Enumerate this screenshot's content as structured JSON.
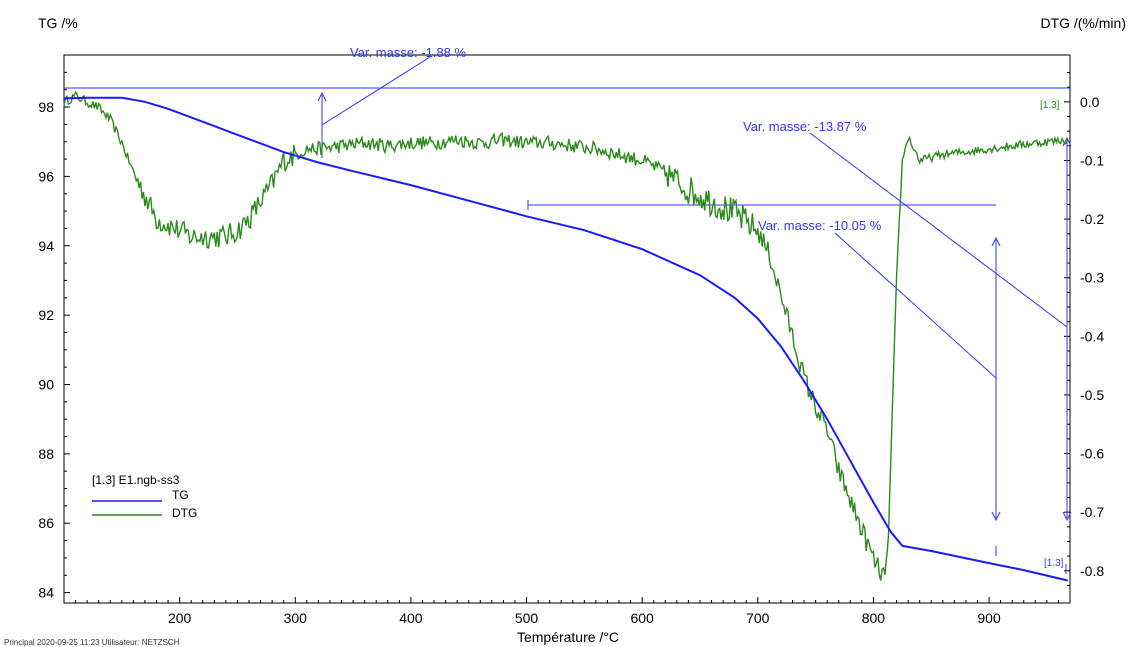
{
  "chart_data": {
    "type": "line",
    "xlabel": "Température /°C",
    "ylabel_left": "TG /%",
    "ylabel_right": "DTG /(%/min)",
    "xlim": [
      100,
      970
    ],
    "ylim_left": [
      83.7,
      99.5
    ],
    "ylim_right": [
      -0.855,
      0.08
    ],
    "x_ticks": [
      200,
      300,
      400,
      500,
      600,
      700,
      800,
      900
    ],
    "y_left_ticks": [
      84,
      86,
      88,
      90,
      92,
      94,
      96,
      98
    ],
    "y_right_ticks": [
      0.0,
      -0.1,
      -0.2,
      -0.3,
      -0.4,
      -0.5,
      -0.6,
      -0.7,
      -0.8
    ],
    "y_right_tick_labels": [
      "0.0",
      "-0.1",
      "-0.2",
      "-0.3",
      "-0.4",
      "-0.5",
      "-0.6",
      "-0.7",
      "-0.8"
    ],
    "grid": false,
    "legend": {
      "placement": "bottom-left",
      "title": "[1.3] E1.ngb-ss3",
      "entries": [
        "TG",
        "DTG"
      ]
    },
    "series": [
      {
        "name": "TG",
        "axis": "left",
        "color": "#1a1aff",
        "x": [
          100,
          120,
          150,
          170,
          190,
          210,
          230,
          250,
          270,
          290,
          300,
          320,
          350,
          400,
          450,
          500,
          550,
          600,
          650,
          680,
          700,
          720,
          740,
          760,
          780,
          800,
          815,
          825,
          850,
          900,
          930,
          968
        ],
        "y": [
          98.25,
          98.27,
          98.27,
          98.15,
          97.95,
          97.7,
          97.45,
          97.2,
          96.95,
          96.7,
          96.6,
          96.4,
          96.15,
          95.75,
          95.3,
          94.85,
          94.45,
          93.9,
          93.15,
          92.5,
          91.9,
          91.1,
          90.1,
          89.0,
          87.8,
          86.6,
          85.75,
          85.35,
          85.2,
          84.85,
          84.65,
          84.35
        ]
      },
      {
        "name": "DTG",
        "axis": "right",
        "color": "#2a8a1a",
        "x": [
          100,
          110,
          120,
          130,
          140,
          150,
          160,
          170,
          180,
          190,
          200,
          210,
          220,
          230,
          240,
          250,
          260,
          270,
          280,
          290,
          300,
          310,
          320,
          340,
          360,
          380,
          400,
          420,
          440,
          460,
          480,
          500,
          520,
          540,
          560,
          580,
          600,
          620,
          640,
          660,
          680,
          700,
          710,
          720,
          730,
          740,
          750,
          760,
          770,
          780,
          790,
          800,
          805,
          810,
          813,
          816,
          820,
          825,
          830,
          840,
          860,
          880,
          900,
          920,
          940,
          968
        ],
        "y": [
          0.0,
          0.01,
          0.0,
          -0.01,
          -0.03,
          -0.07,
          -0.12,
          -0.16,
          -0.2,
          -0.21,
          -0.22,
          -0.23,
          -0.23,
          -0.23,
          -0.23,
          -0.22,
          -0.2,
          -0.17,
          -0.14,
          -0.1,
          -0.09,
          -0.08,
          -0.08,
          -0.075,
          -0.07,
          -0.075,
          -0.07,
          -0.07,
          -0.065,
          -0.07,
          -0.065,
          -0.07,
          -0.07,
          -0.075,
          -0.08,
          -0.09,
          -0.1,
          -0.12,
          -0.15,
          -0.17,
          -0.19,
          -0.22,
          -0.26,
          -0.33,
          -0.4,
          -0.47,
          -0.52,
          -0.56,
          -0.63,
          -0.68,
          -0.73,
          -0.78,
          -0.8,
          -0.81,
          -0.74,
          -0.55,
          -0.3,
          -0.1,
          -0.06,
          -0.1,
          -0.09,
          -0.085,
          -0.08,
          -0.075,
          -0.07,
          -0.065
        ]
      }
    ],
    "annotations": [
      {
        "text": "Var. masse: -1.88 %",
        "color": "#3333ff"
      },
      {
        "text": "Var. masse: -13.87 %",
        "color": "#3333ff"
      },
      {
        "text": "Var. masse: -10.05 %",
        "color": "#3333ff"
      }
    ],
    "curve_tags": [
      {
        "text": "[1.3]",
        "color": "#2a8a1a"
      },
      {
        "text": "[1.3]",
        "color": "#3333ff"
      }
    ],
    "footer": "Principal   2020-09-25 11:23   Utilisateur: NETZSCH"
  }
}
